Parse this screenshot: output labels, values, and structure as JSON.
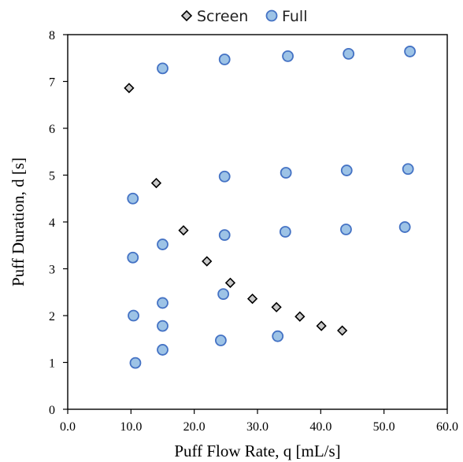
{
  "chart_data": {
    "type": "scatter",
    "title": "",
    "xlabel": "Puff Flow Rate, q [mL/s]",
    "ylabel": "Puff Duration, d [s]",
    "xlim": [
      0,
      60
    ],
    "ylim": [
      0,
      8
    ],
    "x_ticks": [
      "0.0",
      "10.0",
      "20.0",
      "30.0",
      "40.0",
      "50.0",
      "60.0"
    ],
    "y_ticks": [
      "0",
      "1",
      "2",
      "3",
      "4",
      "5",
      "6",
      "7",
      "8"
    ],
    "legend_position": "top-center",
    "series": [
      {
        "name": "Screen",
        "marker": "diamond",
        "color": "#c9c9c9",
        "edge_color": "#000000",
        "points": [
          [
            9.7,
            6.86
          ],
          [
            14.0,
            4.83
          ],
          [
            18.3,
            3.82
          ],
          [
            22.0,
            3.16
          ],
          [
            25.7,
            2.7
          ],
          [
            29.2,
            2.36
          ],
          [
            33.0,
            2.18
          ],
          [
            36.7,
            1.98
          ],
          [
            40.1,
            1.78
          ],
          [
            43.4,
            1.68
          ]
        ]
      },
      {
        "name": "Full",
        "marker": "circle",
        "color": "#9dc3e6",
        "edge_color": "#4472c4",
        "points": [
          [
            10.7,
            0.99
          ],
          [
            15.0,
            1.27
          ],
          [
            24.2,
            1.47
          ],
          [
            33.2,
            1.56
          ],
          [
            10.4,
            2.0
          ],
          [
            15.0,
            1.78
          ],
          [
            15.0,
            2.27
          ],
          [
            24.6,
            2.46
          ],
          [
            10.3,
            3.24
          ],
          [
            15.0,
            3.52
          ],
          [
            24.8,
            3.72
          ],
          [
            34.4,
            3.79
          ],
          [
            44.0,
            3.84
          ],
          [
            53.3,
            3.89
          ],
          [
            10.3,
            4.5
          ],
          [
            24.8,
            4.97
          ],
          [
            34.5,
            5.05
          ],
          [
            44.1,
            5.1
          ],
          [
            53.8,
            5.13
          ],
          [
            15.0,
            7.28
          ],
          [
            24.8,
            7.47
          ],
          [
            34.8,
            7.54
          ],
          [
            44.4,
            7.59
          ],
          [
            54.1,
            7.64
          ]
        ]
      }
    ]
  }
}
